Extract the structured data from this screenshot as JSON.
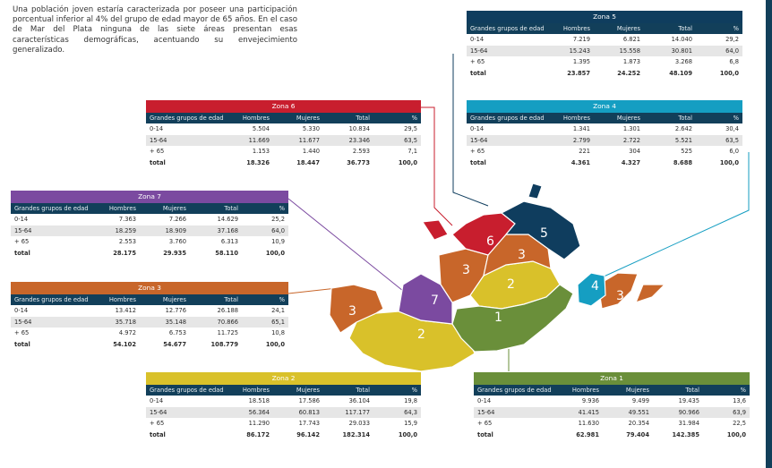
{
  "intro_text": "Una población joven estaría caracterizada por poseer una participación porcentual inferior al 4% del grupo de edad mayor de 65 años. En el caso de Mar del Plata ninguna de las siete áreas presentan esas características demográficas, acentuando su envejecimiento generalizado.",
  "columns": [
    "Grandes grupos de edad",
    "Hombres",
    "Mujeres",
    "Total",
    "%"
  ],
  "colors": {
    "zona1": "#6a8f3a",
    "zona2": "#d9c12a",
    "zona3": "#c8662a",
    "zona4": "#159ec2",
    "zona5": "#0f3d5e",
    "zona6": "#c81e2e",
    "zona7": "#7b4aa0",
    "header_row": "#123f5a"
  },
  "map_labels": [
    "1",
    "2",
    "3",
    "4",
    "5",
    "6",
    "7",
    "3",
    "3",
    "3",
    "2"
  ],
  "zones": [
    {
      "id": "zona5",
      "title": "Zona 5",
      "rows": [
        [
          "0-14",
          "7.219",
          "6.821",
          "14.040",
          "29,2"
        ],
        [
          "15-64",
          "15.243",
          "15.558",
          "30.801",
          "64,0"
        ],
        [
          "+ 65",
          "1.395",
          "1.873",
          "3.268",
          "6,8"
        ]
      ],
      "total": [
        "total",
        "23.857",
        "24.252",
        "48.109",
        "100,0"
      ]
    },
    {
      "id": "zona6",
      "title": "Zona 6",
      "rows": [
        [
          "0-14",
          "5.504",
          "5.330",
          "10.834",
          "29,5"
        ],
        [
          "15-64",
          "11.669",
          "11.677",
          "23.346",
          "63,5"
        ],
        [
          "+ 65",
          "1.153",
          "1.440",
          "2.593",
          "7,1"
        ]
      ],
      "total": [
        "total",
        "18.326",
        "18.447",
        "36.773",
        "100,0"
      ]
    },
    {
      "id": "zona4",
      "title": "Zona 4",
      "rows": [
        [
          "0-14",
          "1.341",
          "1.301",
          "2.642",
          "30,4"
        ],
        [
          "15-64",
          "2.799",
          "2.722",
          "5.521",
          "63,5"
        ],
        [
          "+ 65",
          "221",
          "304",
          "525",
          "6,0"
        ]
      ],
      "total": [
        "total",
        "4.361",
        "4.327",
        "8.688",
        "100,0"
      ]
    },
    {
      "id": "zona7",
      "title": "Zona 7",
      "rows": [
        [
          "0-14",
          "7.363",
          "7.266",
          "14.629",
          "25,2"
        ],
        [
          "15-64",
          "18.259",
          "18.909",
          "37.168",
          "64,0"
        ],
        [
          "+ 65",
          "2.553",
          "3.760",
          "6.313",
          "10,9"
        ]
      ],
      "total": [
        "total",
        "28.175",
        "29.935",
        "58.110",
        "100,0"
      ]
    },
    {
      "id": "zona3",
      "title": "Zona 3",
      "rows": [
        [
          "0-14",
          "13.412",
          "12.776",
          "26.188",
          "24,1"
        ],
        [
          "15-64",
          "35.718",
          "35.148",
          "70.866",
          "65,1"
        ],
        [
          "+ 65",
          "4.972",
          "6.753",
          "11.725",
          "10,8"
        ]
      ],
      "total": [
        "total",
        "54.102",
        "54.677",
        "108.779",
        "100,0"
      ]
    },
    {
      "id": "zona2",
      "title": "Zona 2",
      "rows": [
        [
          "0-14",
          "18.518",
          "17.586",
          "36.104",
          "19,8"
        ],
        [
          "15-64",
          "56.364",
          "60.813",
          "117.177",
          "64,3"
        ],
        [
          "+ 65",
          "11.290",
          "17.743",
          "29.033",
          "15,9"
        ]
      ],
      "total": [
        "total",
        "86.172",
        "96.142",
        "182.314",
        "100,0"
      ]
    },
    {
      "id": "zona1",
      "title": "Zona 1",
      "rows": [
        [
          "0-14",
          "9.936",
          "9.499",
          "19.435",
          "13,6"
        ],
        [
          "15-64",
          "41.415",
          "49.551",
          "90.966",
          "63,9"
        ],
        [
          "+ 65",
          "11.630",
          "20.354",
          "31.984",
          "22,5"
        ]
      ],
      "total": [
        "total",
        "62.981",
        "79.404",
        "142.385",
        "100,0"
      ]
    }
  ]
}
